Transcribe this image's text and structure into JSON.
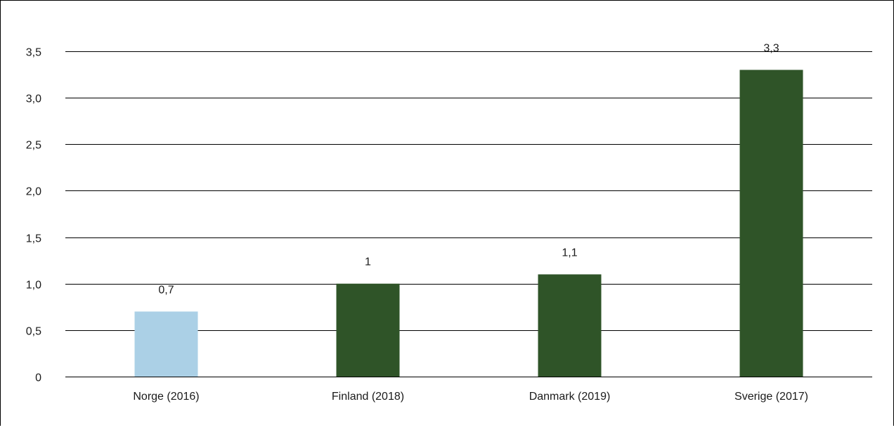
{
  "chart_data": {
    "type": "bar",
    "title": "",
    "xlabel": "",
    "ylabel": "",
    "categories": [
      "Norge (2016)",
      "Finland (2018)",
      "Danmark (2019)",
      "Sverige  (2017)"
    ],
    "values": [
      0.7,
      1.0,
      1.1,
      3.3
    ],
    "data_labels": [
      "0,7",
      "1",
      "1,1",
      "3,3"
    ],
    "ylim": [
      0,
      3.5
    ],
    "yticks": [
      {
        "value": 0,
        "label": "0"
      },
      {
        "value": 0.5,
        "label": "0,5"
      },
      {
        "value": 1.0,
        "label": "1,0"
      },
      {
        "value": 1.5,
        "label": "1,5"
      },
      {
        "value": 2.0,
        "label": "2,0"
      },
      {
        "value": 2.5,
        "label": "2,5"
      },
      {
        "value": 3.0,
        "label": "3,0"
      },
      {
        "value": 3.5,
        "label": "3,5"
      }
    ],
    "grid": true,
    "legend": "none",
    "colors": [
      "#abd0e6",
      "#2f5428",
      "#2f5428",
      "#2f5428"
    ]
  }
}
